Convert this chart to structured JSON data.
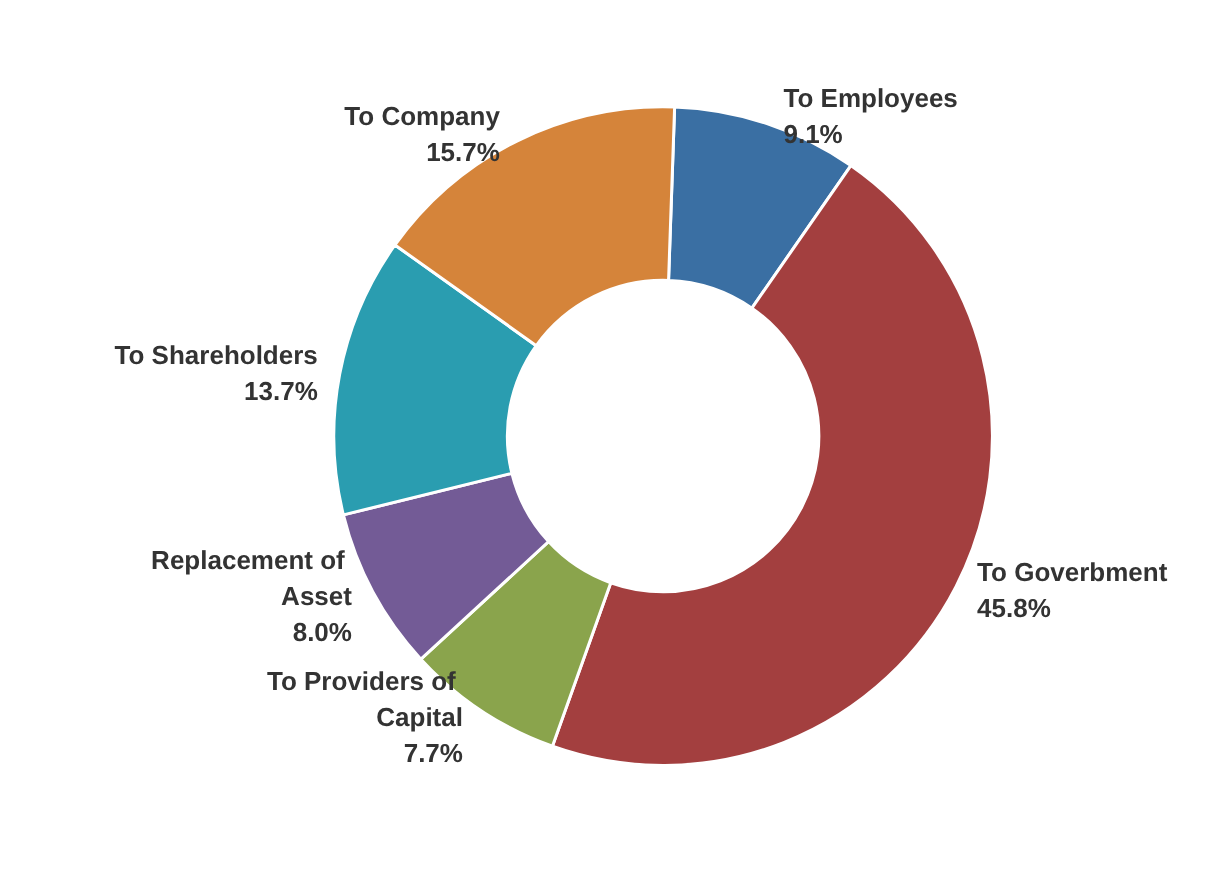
{
  "chart_data": {
    "type": "donut",
    "categories": [
      "To Employees",
      "To Goverbment",
      "To Providers of Capital",
      "Replacement of Asset",
      "To Shareholders",
      "To Company"
    ],
    "values": [
      9.1,
      45.8,
      7.7,
      8.0,
      13.7,
      15.7
    ],
    "value_labels": [
      "9.1%",
      "45.8%",
      "7.7%",
      "8.0%",
      "13.7%",
      "15.7%"
    ],
    "colors": [
      "#3a6fa3",
      "#a33f3f",
      "#8aa44c",
      "#735b96",
      "#2a9db0",
      "#d5843a"
    ],
    "legend": false
  }
}
